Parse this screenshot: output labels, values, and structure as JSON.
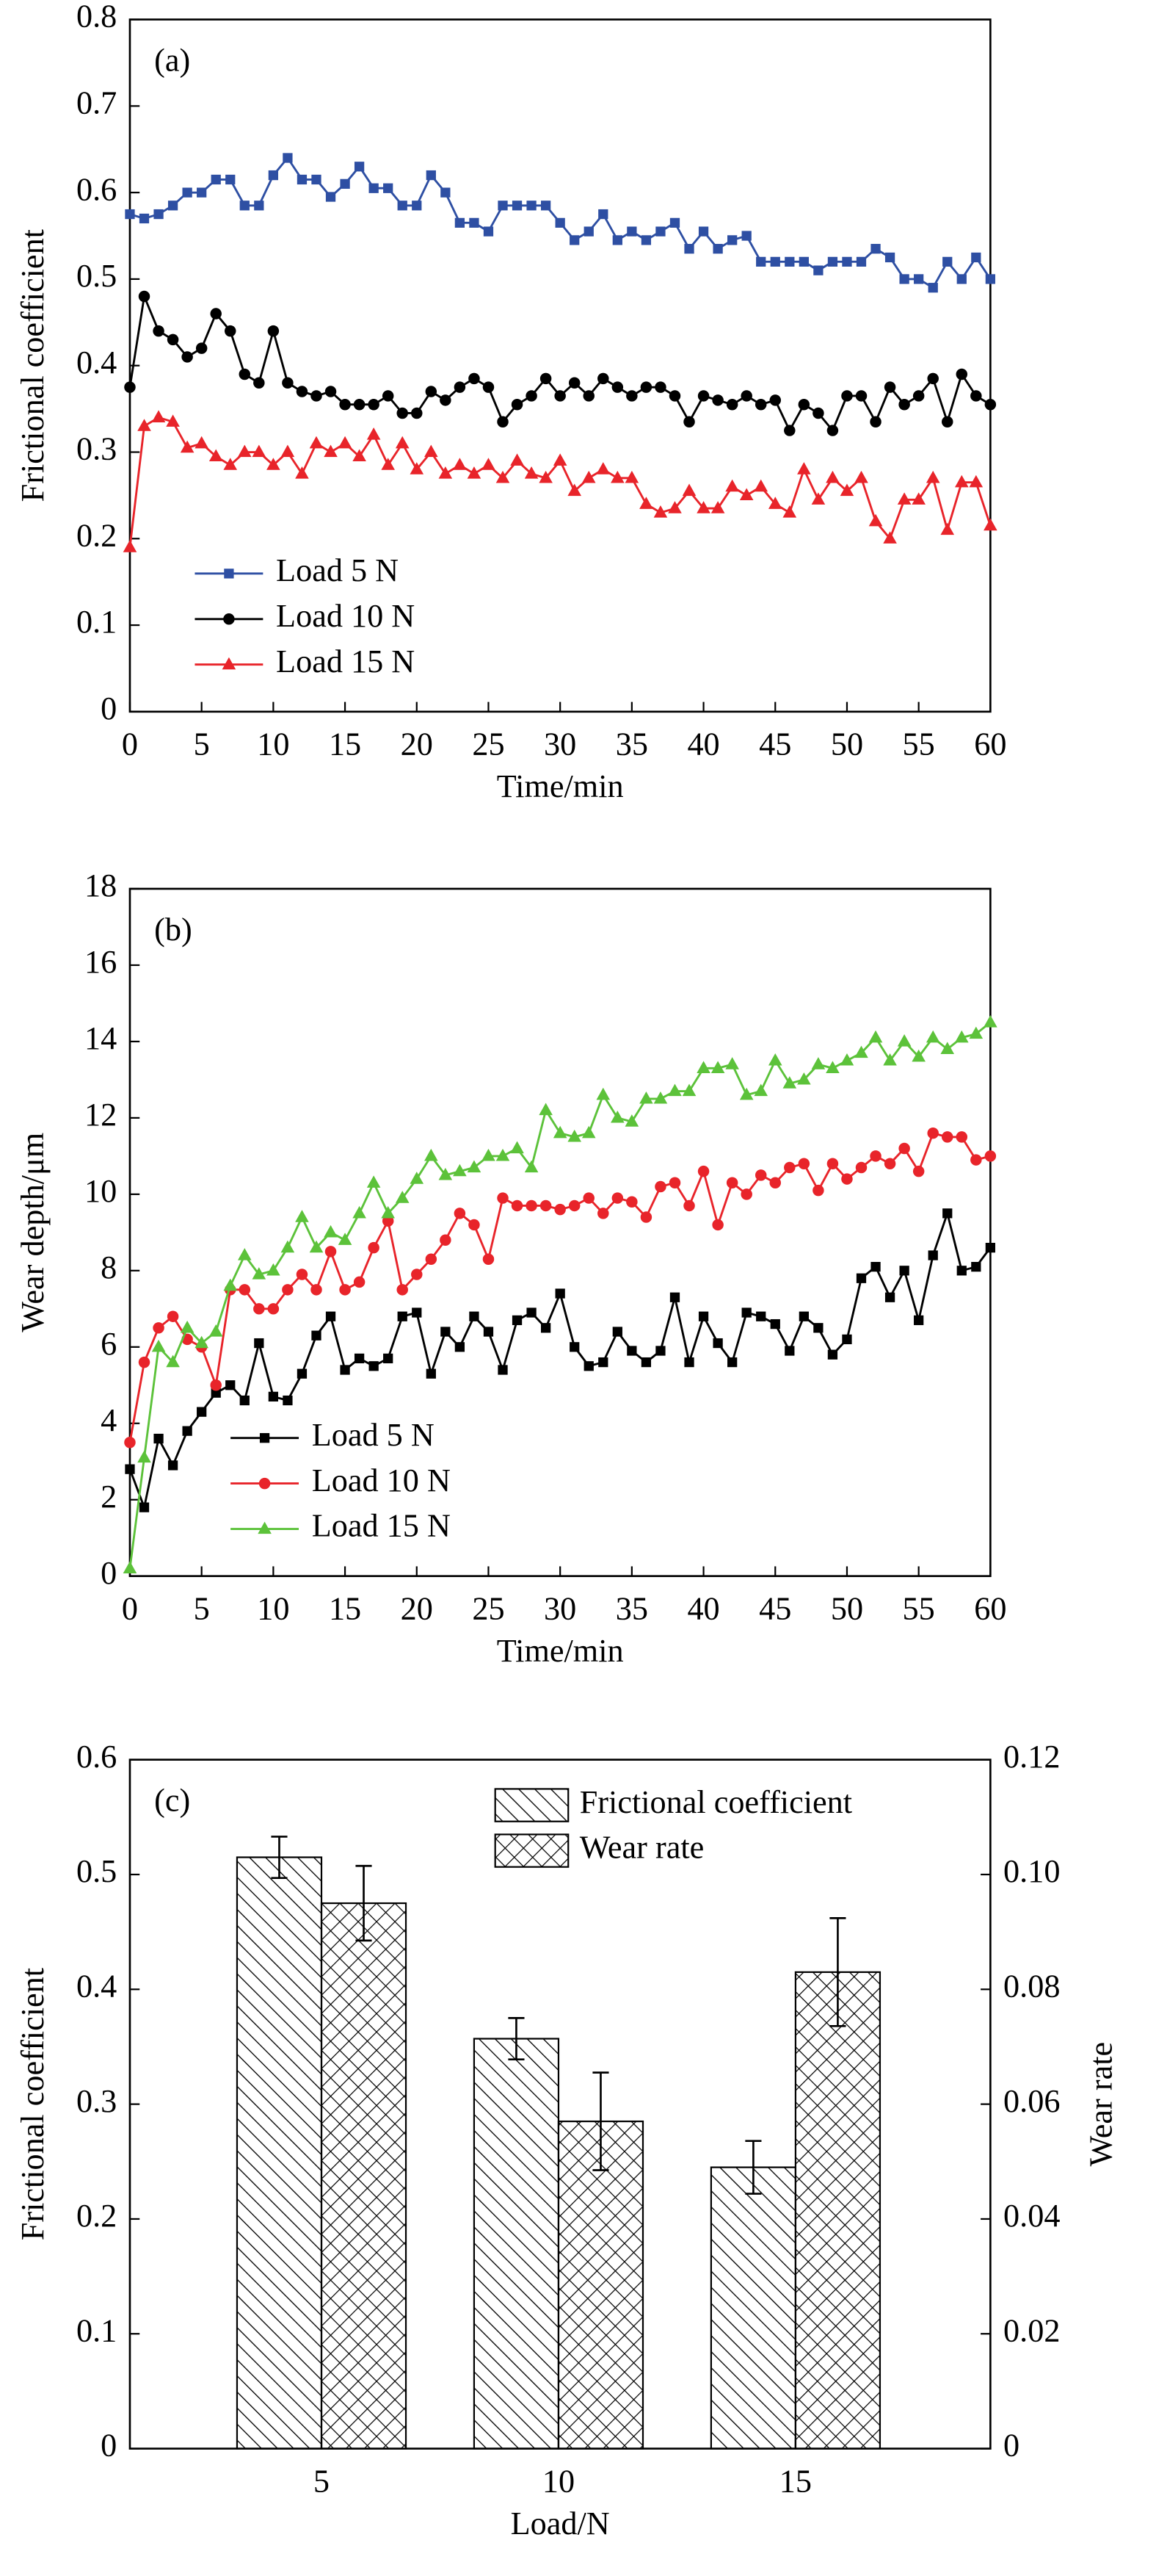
{
  "chart_data": [
    {
      "type": "line",
      "annotation": "(a)",
      "xlabel": "Time/min",
      "ylabel": "Frictional coefficient",
      "x": [
        0,
        1,
        2,
        3,
        4,
        5,
        6,
        7,
        8,
        9,
        10,
        11,
        12,
        13,
        14,
        15,
        16,
        17,
        18,
        19,
        20,
        21,
        22,
        23,
        24,
        25,
        26,
        27,
        28,
        29,
        30,
        31,
        32,
        33,
        34,
        35,
        36,
        37,
        38,
        39,
        40,
        41,
        42,
        43,
        44,
        45,
        46,
        47,
        48,
        49,
        50,
        51,
        52,
        53,
        54,
        55,
        56,
        57,
        58,
        59,
        60
      ],
      "xlim": [
        0,
        60
      ],
      "xticks": [
        0,
        5,
        10,
        15,
        20,
        25,
        30,
        35,
        40,
        45,
        50,
        55,
        60
      ],
      "ylim": [
        0,
        0.8
      ],
      "yticks": [
        0,
        0.1,
        0.2,
        0.3,
        0.4,
        0.5,
        0.6,
        0.7,
        0.8
      ],
      "legend": "lower left",
      "series": [
        {
          "name": "Load 5 N",
          "color": "#2e4fa3",
          "marker": "square",
          "values": [
            0.575,
            0.57,
            0.575,
            0.585,
            0.6,
            0.6,
            0.615,
            0.615,
            0.585,
            0.585,
            0.62,
            0.64,
            0.615,
            0.615,
            0.595,
            0.61,
            0.63,
            0.605,
            0.605,
            0.585,
            0.585,
            0.62,
            0.6,
            0.565,
            0.565,
            0.555,
            0.585,
            0.585,
            0.585,
            0.585,
            0.565,
            0.545,
            0.555,
            0.575,
            0.545,
            0.555,
            0.545,
            0.555,
            0.565,
            0.535,
            0.555,
            0.535,
            0.545,
            0.55,
            0.52,
            0.52,
            0.52,
            0.52,
            0.51,
            0.52,
            0.52,
            0.52,
            0.535,
            0.525,
            0.5,
            0.5,
            0.49,
            0.52,
            0.5,
            0.525,
            0.5
          ]
        },
        {
          "name": "Load 10 N",
          "color": "#000000",
          "marker": "circle",
          "values": [
            0.375,
            0.48,
            0.44,
            0.43,
            0.41,
            0.42,
            0.46,
            0.44,
            0.39,
            0.38,
            0.44,
            0.38,
            0.37,
            0.365,
            0.37,
            0.355,
            0.355,
            0.355,
            0.365,
            0.345,
            0.345,
            0.37,
            0.36,
            0.375,
            0.385,
            0.375,
            0.335,
            0.355,
            0.365,
            0.385,
            0.365,
            0.38,
            0.365,
            0.385,
            0.375,
            0.365,
            0.375,
            0.375,
            0.365,
            0.335,
            0.365,
            0.36,
            0.355,
            0.365,
            0.355,
            0.36,
            0.325,
            0.355,
            0.345,
            0.325,
            0.365,
            0.365,
            0.335,
            0.375,
            0.355,
            0.365,
            0.385,
            0.335,
            0.39,
            0.365,
            0.355
          ]
        },
        {
          "name": "Load 15 N",
          "color": "#e8242a",
          "marker": "triangle",
          "values": [
            0.19,
            0.33,
            0.34,
            0.335,
            0.305,
            0.31,
            0.295,
            0.285,
            0.3,
            0.3,
            0.285,
            0.3,
            0.275,
            0.31,
            0.3,
            0.31,
            0.295,
            0.32,
            0.285,
            0.31,
            0.28,
            0.3,
            0.275,
            0.285,
            0.275,
            0.285,
            0.27,
            0.29,
            0.275,
            0.27,
            0.29,
            0.255,
            0.27,
            0.28,
            0.27,
            0.27,
            0.24,
            0.23,
            0.235,
            0.255,
            0.235,
            0.235,
            0.26,
            0.25,
            0.26,
            0.24,
            0.23,
            0.28,
            0.245,
            0.27,
            0.255,
            0.27,
            0.22,
            0.2,
            0.245,
            0.245,
            0.27,
            0.21,
            0.265,
            0.265,
            0.215
          ]
        }
      ]
    },
    {
      "type": "line",
      "annotation": "(b)",
      "xlabel": "Time/min",
      "ylabel": "Wear depth/μm",
      "x": [
        0,
        1,
        2,
        3,
        4,
        5,
        6,
        7,
        8,
        9,
        10,
        11,
        12,
        13,
        14,
        15,
        16,
        17,
        18,
        19,
        20,
        21,
        22,
        23,
        24,
        25,
        26,
        27,
        28,
        29,
        30,
        31,
        32,
        33,
        34,
        35,
        36,
        37,
        38,
        39,
        40,
        41,
        42,
        43,
        44,
        45,
        46,
        47,
        48,
        49,
        50,
        51,
        52,
        53,
        54,
        55,
        56,
        57,
        58,
        59,
        60
      ],
      "xlim": [
        0,
        60
      ],
      "xticks": [
        0,
        5,
        10,
        15,
        20,
        25,
        30,
        35,
        40,
        45,
        50,
        55,
        60
      ],
      "ylim": [
        0,
        18
      ],
      "yticks": [
        0,
        2,
        4,
        6,
        8,
        10,
        12,
        14,
        16,
        18
      ],
      "legend": "lower left",
      "series": [
        {
          "name": "Load 5 N",
          "color": "#000000",
          "marker": "square",
          "values": [
            2.8,
            1.8,
            3.6,
            2.9,
            3.8,
            4.3,
            4.8,
            5.0,
            4.6,
            6.1,
            4.7,
            4.6,
            5.3,
            6.3,
            6.8,
            5.4,
            5.7,
            5.5,
            5.7,
            6.8,
            6.9,
            5.3,
            6.4,
            6.0,
            6.8,
            6.4,
            5.4,
            6.7,
            6.9,
            6.5,
            7.4,
            6.0,
            5.5,
            5.6,
            6.4,
            5.9,
            5.6,
            5.9,
            7.3,
            5.6,
            6.8,
            6.1,
            5.6,
            6.9,
            6.8,
            6.6,
            5.9,
            6.8,
            6.5,
            5.8,
            6.2,
            7.8,
            8.1,
            7.3,
            8.0,
            6.7,
            8.4,
            9.5,
            8.0,
            8.1,
            8.6
          ]
        },
        {
          "name": "Load 10 N",
          "color": "#e8242a",
          "marker": "circle",
          "values": [
            3.5,
            5.6,
            6.5,
            6.8,
            6.2,
            6.0,
            5.0,
            7.5,
            7.5,
            7.0,
            7.0,
            7.5,
            7.9,
            7.5,
            8.5,
            7.5,
            7.7,
            8.6,
            9.3,
            7.5,
            7.9,
            8.3,
            8.8,
            9.5,
            9.2,
            8.3,
            9.9,
            9.7,
            9.7,
            9.7,
            9.6,
            9.7,
            9.9,
            9.5,
            9.9,
            9.8,
            9.4,
            10.2,
            10.3,
            9.7,
            10.6,
            9.2,
            10.3,
            10.0,
            10.5,
            10.3,
            10.7,
            10.8,
            10.1,
            10.8,
            10.4,
            10.7,
            11.0,
            10.8,
            11.2,
            10.6,
            11.6,
            11.5,
            11.5,
            10.9,
            11.0
          ]
        },
        {
          "name": "Load 15 N",
          "color": "#5cc23a",
          "marker": "triangle",
          "values": [
            0.2,
            3.1,
            6.0,
            5.6,
            6.5,
            6.1,
            6.4,
            7.6,
            8.4,
            7.9,
            8.0,
            8.6,
            9.4,
            8.6,
            9.0,
            8.8,
            9.5,
            10.3,
            9.5,
            9.9,
            10.4,
            11.0,
            10.5,
            10.6,
            10.7,
            11.0,
            11.0,
            11.2,
            10.7,
            12.2,
            11.6,
            11.5,
            11.6,
            12.6,
            12.0,
            11.9,
            12.5,
            12.5,
            12.7,
            12.7,
            13.3,
            13.3,
            13.4,
            12.6,
            12.7,
            13.5,
            12.9,
            13.0,
            13.4,
            13.3,
            13.5,
            13.7,
            14.1,
            13.5,
            14.0,
            13.6,
            14.1,
            13.8,
            14.1,
            14.2,
            14.5
          ]
        }
      ]
    },
    {
      "type": "bar",
      "annotation": "(c)",
      "xlabel": "Load/N",
      "ylabel": "Frictional coefficient",
      "y2label": "Wear rate",
      "categories": [
        "5",
        "10",
        "15"
      ],
      "ylim": [
        0,
        0.6
      ],
      "yticks": [
        0,
        0.1,
        0.2,
        0.3,
        0.4,
        0.5,
        0.6
      ],
      "y2lim": [
        0,
        0.12
      ],
      "y2ticks": [
        0,
        0.02,
        0.04,
        0.06,
        0.08,
        {
          "value": 0.1,
          "label": "0.10"
        },
        0.12
      ],
      "legend": "upper right",
      "series": [
        {
          "name": "Frictional coefficient",
          "color": "#000000",
          "hatch": "diagonal",
          "values": [
            0.515,
            0.357,
            0.245
          ],
          "errors": [
            0.018,
            0.018,
            0.023
          ]
        },
        {
          "name": "Wear rate",
          "color": "#000000",
          "hatch": "cross",
          "axis": "y2",
          "values": [
            0.095,
            0.057,
            0.083
          ],
          "errors": [
            0.0065,
            0.0085,
            0.0094
          ]
        }
      ]
    }
  ]
}
